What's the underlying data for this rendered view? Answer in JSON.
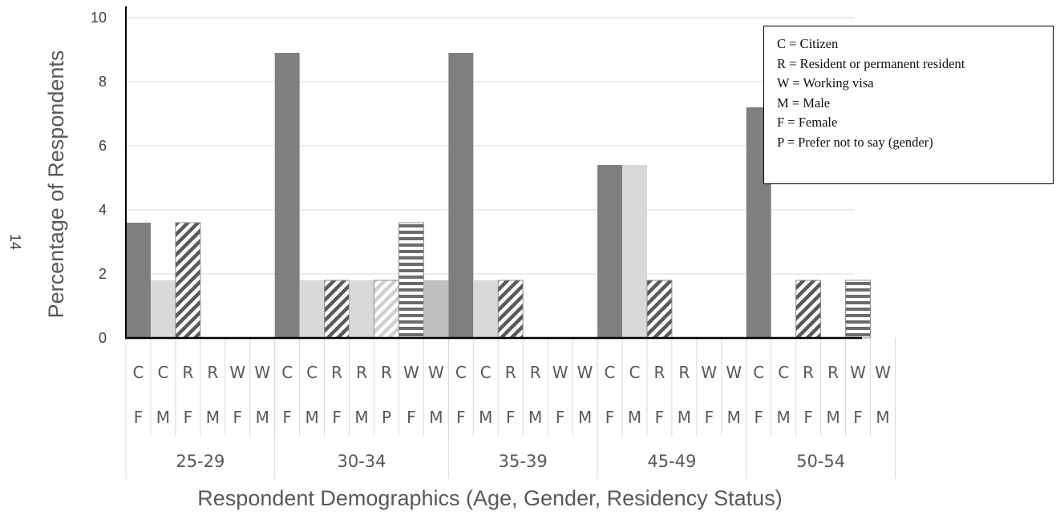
{
  "page_number": "14",
  "chart_data": {
    "type": "bar",
    "ylabel": "Percentage of Respondents",
    "xlabel": "Respondent Demographics (Age, Gender, Residency Status)",
    "ylim": [
      0,
      10
    ],
    "yticks": [
      "0",
      "2",
      "4",
      "6",
      "8",
      "10"
    ],
    "grid": true,
    "legend_position": "top-right",
    "legend": [
      "C = Citizen",
      "R = Resident or permanent resident",
      "W = Working visa",
      "M = Male",
      "F = Female",
      "P = Prefer not to say (gender)"
    ],
    "colors": {
      "CF": "#7f7f7f",
      "CM": "#d9d9d9",
      "RF": "#7f7f7f",
      "RM": "#d9d9d9",
      "RP": "#f2f2f2",
      "WF": "#7f7f7f",
      "WM": "#bfbfbf"
    },
    "groups": [
      {
        "label": "25-29",
        "bars": [
          {
            "residency": "C",
            "gender": "F",
            "value": 3.6
          },
          {
            "residency": "C",
            "gender": "M",
            "value": 1.8
          },
          {
            "residency": "R",
            "gender": "F",
            "value": 3.6
          },
          {
            "residency": "R",
            "gender": "M",
            "value": 0
          },
          {
            "residency": "W",
            "gender": "F",
            "value": 0
          },
          {
            "residency": "W",
            "gender": "M",
            "value": 0
          }
        ]
      },
      {
        "label": "30-34",
        "bars": [
          {
            "residency": "C",
            "gender": "F",
            "value": 8.9
          },
          {
            "residency": "C",
            "gender": "M",
            "value": 1.8
          },
          {
            "residency": "R",
            "gender": "F",
            "value": 1.8
          },
          {
            "residency": "R",
            "gender": "M",
            "value": 1.8
          },
          {
            "residency": "R",
            "gender": "P",
            "value": 1.8
          },
          {
            "residency": "W",
            "gender": "F",
            "value": 3.6
          },
          {
            "residency": "W",
            "gender": "M",
            "value": 1.8
          }
        ]
      },
      {
        "label": "35-39",
        "bars": [
          {
            "residency": "C",
            "gender": "F",
            "value": 8.9
          },
          {
            "residency": "C",
            "gender": "M",
            "value": 1.8
          },
          {
            "residency": "R",
            "gender": "F",
            "value": 1.8
          },
          {
            "residency": "R",
            "gender": "M",
            "value": 0
          },
          {
            "residency": "W",
            "gender": "F",
            "value": 0
          },
          {
            "residency": "W",
            "gender": "M",
            "value": 0
          }
        ]
      },
      {
        "label": "45-49",
        "bars": [
          {
            "residency": "C",
            "gender": "F",
            "value": 5.4
          },
          {
            "residency": "C",
            "gender": "M",
            "value": 5.4
          },
          {
            "residency": "R",
            "gender": "F",
            "value": 1.8
          },
          {
            "residency": "R",
            "gender": "M",
            "value": 0
          },
          {
            "residency": "W",
            "gender": "F",
            "value": 0
          },
          {
            "residency": "W",
            "gender": "M",
            "value": 0
          }
        ]
      },
      {
        "label": "50-54",
        "bars": [
          {
            "residency": "C",
            "gender": "F",
            "value": 7.2
          },
          {
            "residency": "C",
            "gender": "M",
            "value": 0
          },
          {
            "residency": "R",
            "gender": "F",
            "value": 1.8
          },
          {
            "residency": "R",
            "gender": "M",
            "value": 0
          },
          {
            "residency": "W",
            "gender": "F",
            "value": 1.8
          },
          {
            "residency": "W",
            "gender": "M",
            "value": 0
          }
        ]
      }
    ]
  }
}
